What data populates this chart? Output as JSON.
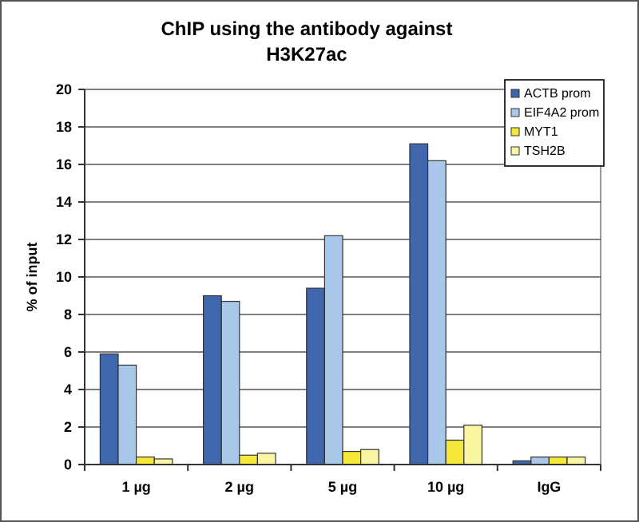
{
  "chart_data": {
    "type": "bar",
    "title": "ChIP using the antibody against H3K27ac",
    "ylabel": "% of input",
    "categories": [
      "1 µg",
      "2 µg",
      "5 µg",
      "10 µg",
      "IgG"
    ],
    "series": [
      {
        "name": "ACTB prom",
        "color": "#4066ae",
        "values": [
          5.9,
          9.0,
          9.4,
          17.1,
          0.2
        ]
      },
      {
        "name": "EIF4A2 prom",
        "color": "#a9c7e8",
        "values": [
          5.3,
          8.7,
          12.2,
          16.2,
          0.4
        ]
      },
      {
        "name": "MYT1",
        "color": "#f5e83a",
        "values": [
          0.4,
          0.5,
          0.7,
          1.3,
          0.4
        ]
      },
      {
        "name": "TSH2B",
        "color": "#faf5a0",
        "values": [
          0.3,
          0.6,
          0.8,
          2.1,
          0.4
        ]
      }
    ],
    "ylim": [
      0,
      20
    ],
    "yticks": [
      0,
      2,
      4,
      6,
      8,
      10,
      12,
      14,
      16,
      18,
      20
    ],
    "grid": "y",
    "legend": "top right"
  }
}
